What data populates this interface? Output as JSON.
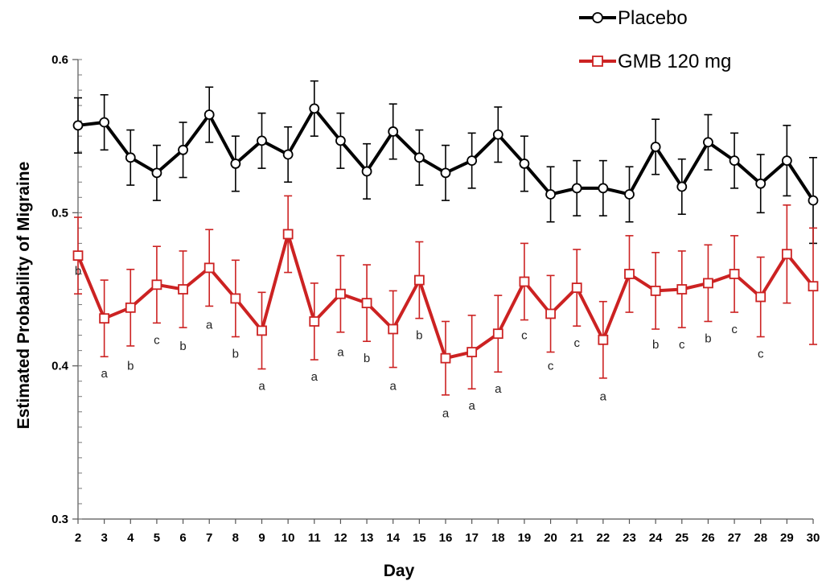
{
  "chart_data": {
    "type": "line",
    "xlabel": "Day",
    "ylabel": "Estimated Probability of Migraine",
    "x": [
      2,
      3,
      4,
      5,
      6,
      7,
      8,
      9,
      10,
      11,
      12,
      13,
      14,
      15,
      16,
      17,
      18,
      19,
      20,
      21,
      22,
      23,
      24,
      25,
      26,
      27,
      28,
      29,
      30
    ],
    "ylim": [
      0.3,
      0.6
    ],
    "yticks": [
      "0.3",
      "0.4",
      "0.5",
      "0.6"
    ],
    "grid": false,
    "legend_position": "top-right",
    "series": [
      {
        "name": "Placebo",
        "color": "#000000",
        "marker": "circle",
        "values": [
          0.557,
          0.559,
          0.536,
          0.526,
          0.541,
          0.564,
          0.532,
          0.547,
          0.538,
          0.568,
          0.547,
          0.527,
          0.553,
          0.536,
          0.526,
          0.534,
          0.551,
          0.532,
          0.512,
          0.516,
          0.516,
          0.512,
          0.543,
          0.517,
          0.546,
          0.534,
          0.519,
          0.534,
          0.508
        ],
        "error": [
          0.018,
          0.018,
          0.018,
          0.018,
          0.018,
          0.018,
          0.018,
          0.018,
          0.018,
          0.018,
          0.018,
          0.018,
          0.018,
          0.018,
          0.018,
          0.018,
          0.018,
          0.018,
          0.018,
          0.018,
          0.018,
          0.018,
          0.018,
          0.018,
          0.018,
          0.018,
          0.019,
          0.023,
          0.028
        ]
      },
      {
        "name": "GMB 120 mg",
        "color": "#cc2222",
        "marker": "square",
        "values": [
          0.472,
          0.431,
          0.438,
          0.453,
          0.45,
          0.464,
          0.444,
          0.423,
          0.486,
          0.429,
          0.447,
          0.441,
          0.424,
          0.456,
          0.405,
          0.409,
          0.421,
          0.455,
          0.434,
          0.451,
          0.417,
          0.46,
          0.449,
          0.45,
          0.454,
          0.46,
          0.445,
          0.473,
          0.452
        ],
        "error": [
          0.025,
          0.025,
          0.025,
          0.025,
          0.025,
          0.025,
          0.025,
          0.025,
          0.025,
          0.025,
          0.025,
          0.025,
          0.025,
          0.025,
          0.024,
          0.024,
          0.025,
          0.025,
          0.025,
          0.025,
          0.025,
          0.025,
          0.025,
          0.025,
          0.025,
          0.025,
          0.026,
          0.032,
          0.038
        ]
      }
    ],
    "annotations": [
      {
        "day": 2,
        "text": "b",
        "y": 0.462
      },
      {
        "day": 3,
        "text": "a",
        "y": 0.395
      },
      {
        "day": 4,
        "text": "b",
        "y": 0.4
      },
      {
        "day": 5,
        "text": "c",
        "y": 0.417
      },
      {
        "day": 6,
        "text": "b",
        "y": 0.413
      },
      {
        "day": 7,
        "text": "a",
        "y": 0.427
      },
      {
        "day": 8,
        "text": "b",
        "y": 0.408
      },
      {
        "day": 9,
        "text": "a",
        "y": 0.387
      },
      {
        "day": 11,
        "text": "a",
        "y": 0.393
      },
      {
        "day": 12,
        "text": "a",
        "y": 0.409
      },
      {
        "day": 13,
        "text": "b",
        "y": 0.405
      },
      {
        "day": 14,
        "text": "a",
        "y": 0.387
      },
      {
        "day": 15,
        "text": "b",
        "y": 0.42
      },
      {
        "day": 16,
        "text": "a",
        "y": 0.369
      },
      {
        "day": 17,
        "text": "a",
        "y": 0.374
      },
      {
        "day": 18,
        "text": "a",
        "y": 0.385
      },
      {
        "day": 19,
        "text": "c",
        "y": 0.42
      },
      {
        "day": 20,
        "text": "c",
        "y": 0.4
      },
      {
        "day": 21,
        "text": "c",
        "y": 0.415
      },
      {
        "day": 22,
        "text": "a",
        "y": 0.38
      },
      {
        "day": 24,
        "text": "b",
        "y": 0.414
      },
      {
        "day": 25,
        "text": "c",
        "y": 0.414
      },
      {
        "day": 26,
        "text": "b",
        "y": 0.418
      },
      {
        "day": 27,
        "text": "c",
        "y": 0.424
      },
      {
        "day": 28,
        "text": "c",
        "y": 0.408
      }
    ]
  }
}
